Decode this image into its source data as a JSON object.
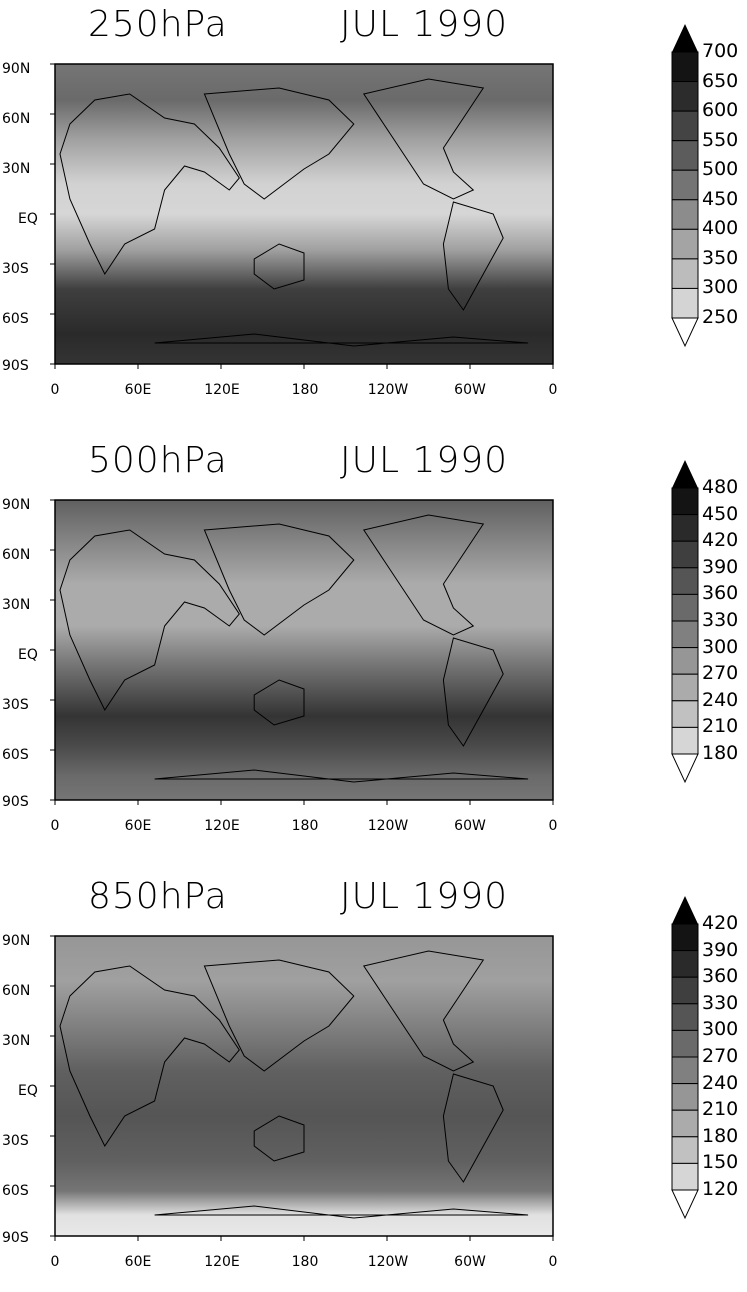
{
  "panels": [
    {
      "level": "250hPa",
      "date": "JUL 1990",
      "y_ticks": [
        "90N",
        "60N",
        "30N",
        "EQ",
        "30S",
        "60S",
        "90S"
      ],
      "x_ticks": [
        "0",
        "60E",
        "120E",
        "180",
        "120W",
        "60W",
        "0"
      ],
      "colorbar_levels": [
        700,
        650,
        600,
        550,
        500,
        450,
        400,
        350,
        300,
        250
      ]
    },
    {
      "level": "500hPa",
      "date": "JUL 1990",
      "y_ticks": [
        "90N",
        "60N",
        "30N",
        "EQ",
        "30S",
        "60S",
        "90S"
      ],
      "x_ticks": [
        "0",
        "60E",
        "120E",
        "180",
        "120W",
        "60W",
        "0"
      ],
      "colorbar_levels": [
        480,
        450,
        420,
        390,
        360,
        330,
        300,
        270,
        240,
        210,
        180
      ]
    },
    {
      "level": "850hPa",
      "date": "JUL 1990",
      "y_ticks": [
        "90N",
        "60N",
        "30N",
        "EQ",
        "30S",
        "60S",
        "90S"
      ],
      "x_ticks": [
        "0",
        "60E",
        "120E",
        "180",
        "120W",
        "60W",
        "0"
      ],
      "colorbar_levels": [
        420,
        390,
        360,
        330,
        300,
        270,
        240,
        210,
        180,
        150,
        120
      ]
    }
  ],
  "colors": {
    "shade_light": "#ececec",
    "shade_dark": "#141414",
    "coast": "#000000"
  }
}
